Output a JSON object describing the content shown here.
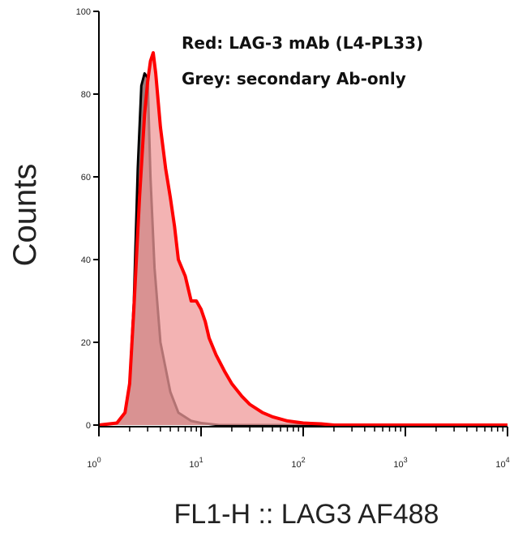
{
  "chart_data": {
    "type": "area",
    "xlabel": "FL1-H :: LAG3 AF488",
    "ylabel": "Counts",
    "xscale": "log",
    "xlim": [
      1,
      10000
    ],
    "ylim": [
      0,
      100
    ],
    "y_ticks": [
      0,
      20,
      40,
      60,
      80,
      100
    ],
    "x_ticks": [
      {
        "value": 1,
        "label": "10",
        "exp": "0"
      },
      {
        "value": 10,
        "label": "10",
        "exp": "1"
      },
      {
        "value": 100,
        "label": "10",
        "exp": "2"
      },
      {
        "value": 1000,
        "label": "10",
        "exp": "3"
      },
      {
        "value": 10000,
        "label": "10",
        "exp": "4"
      }
    ],
    "legend": {
      "placement": "top-right",
      "lines": [
        "Red: LAG-3 mAb (L4-PL33)",
        "Grey: secondary Ab-only"
      ]
    },
    "series": [
      {
        "name": "secondary Ab-only",
        "color": "#000000",
        "fill": "#8c7070",
        "x": [
          1,
          1.5,
          1.8,
          2.0,
          2.2,
          2.4,
          2.6,
          2.8,
          3.0,
          3.2,
          3.5,
          4.0,
          5.0,
          6.0,
          8.0,
          10,
          15,
          10000
        ],
        "y": [
          0,
          0.5,
          3,
          10,
          30,
          62,
          82,
          85,
          84,
          60,
          38,
          20,
          8,
          3,
          1,
          0.5,
          0,
          0
        ]
      },
      {
        "name": "LAG-3 mAb (L4-PL33)",
        "color": "#ff0000",
        "fill": "#ef9a9a",
        "x": [
          1,
          1.5,
          1.8,
          2.0,
          2.2,
          2.5,
          2.8,
          3.0,
          3.2,
          3.4,
          3.6,
          4.0,
          4.5,
          5.0,
          5.5,
          6.0,
          7.0,
          8.0,
          9.0,
          10,
          11,
          12,
          14,
          17,
          20,
          25,
          30,
          40,
          50,
          70,
          100,
          150,
          200,
          400,
          10000
        ],
        "y": [
          0,
          0.5,
          3,
          10,
          28,
          55,
          75,
          83,
          88,
          90,
          85,
          72,
          62,
          55,
          48,
          40,
          36,
          30,
          30,
          28,
          25,
          21,
          17,
          13,
          10,
          7,
          5,
          3,
          2,
          1,
          0.5,
          0.3,
          0,
          0,
          0
        ]
      }
    ]
  }
}
